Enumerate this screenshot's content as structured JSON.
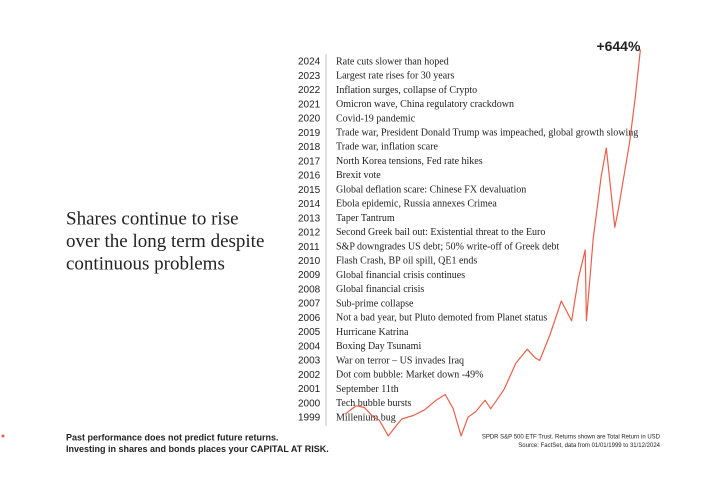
{
  "headline": [
    "Shares continue to rise",
    "over the long term despite",
    "continuous problems"
  ],
  "events": [
    {
      "year": "2024",
      "text": "Rate cuts slower than hoped"
    },
    {
      "year": "2023",
      "text": "Largest rate rises for 30 years"
    },
    {
      "year": "2022",
      "text": "Inflation surges, collapse of Crypto"
    },
    {
      "year": "2021",
      "text": "Omicron wave, China regulatory crackdown"
    },
    {
      "year": "2020",
      "text": "Covid-19 pandemic"
    },
    {
      "year": "2019",
      "text": "Trade war, President Donald Trump was impeached, global growth slowing"
    },
    {
      "year": "2018",
      "text": "Trade war, inflation scare"
    },
    {
      "year": "2017",
      "text": "North Korea tensions, Fed rate hikes"
    },
    {
      "year": "2016",
      "text": "Brexit vote"
    },
    {
      "year": "2015",
      "text": "Global deflation scare: Chinese FX devaluation"
    },
    {
      "year": "2014",
      "text": "Ebola epidemic, Russia annexes Crimea"
    },
    {
      "year": "2013",
      "text": "Taper Tantrum"
    },
    {
      "year": "2012",
      "text": "Second Greek bail out: Existential threat to the Euro"
    },
    {
      "year": "2011",
      "text": "S&P downgrades US debt; 50% write-off of Greek debt"
    },
    {
      "year": "2010",
      "text": "Flash Crash, BP oil spill, QE1 ends"
    },
    {
      "year": "2009",
      "text": "Global financial crisis continues"
    },
    {
      "year": "2008",
      "text": "Global financial crisis"
    },
    {
      "year": "2007",
      "text": "Sub-prime collapse"
    },
    {
      "year": "2006",
      "text": "Not a bad year, but Pluto demoted from Planet status"
    },
    {
      "year": "2005",
      "text": "Hurricane Katrina"
    },
    {
      "year": "2004",
      "text": "Boxing Day Tsunami"
    },
    {
      "year": "2003",
      "text": "War on terror – US invades Iraq"
    },
    {
      "year": "2002",
      "text": "Dot com bubble: Market down -49%"
    },
    {
      "year": "2001",
      "text": "September 11th"
    },
    {
      "year": "2000",
      "text": "Tech bubble bursts"
    },
    {
      "year": "1999",
      "text": "Millenium bug"
    }
  ],
  "chart_data": {
    "type": "line",
    "x": [
      1999.0,
      1999.5,
      2000.0,
      2000.7,
      2001.5,
      2002.0,
      2002.8,
      2003.5,
      2004.0,
      2005.0,
      2006.0,
      2007.0,
      2007.8,
      2008.5,
      2009.2,
      2009.8,
      2010.5,
      2011.3,
      2011.8,
      2012.5,
      2013.0,
      2014.0,
      2015.0,
      2015.7,
      2016.1,
      2017.0,
      2018.0,
      2018.9,
      2019.5,
      2020.1,
      2020.2,
      2020.8,
      2021.5,
      2021.95,
      2022.7,
      2023.0,
      2023.5,
      2024.0,
      2024.5,
      2024.95
    ],
    "series": [
      {
        "color": "#e8604c",
        "values": [
          0,
          8,
          15,
          12,
          -5,
          -10,
          -38,
          -20,
          -8,
          -2,
          8,
          25,
          35,
          10,
          -38,
          -5,
          5,
          25,
          10,
          30,
          45,
          90,
          115,
          100,
          95,
          140,
          200,
          165,
          240,
          290,
          165,
          310,
          420,
          470,
          330,
          360,
          420,
          480,
          560,
          644
        ],
        "value_labels": [
          null,
          null,
          null,
          null,
          null,
          null,
          null,
          null,
          null,
          null,
          null,
          null,
          null,
          null,
          null,
          null,
          null,
          null,
          null,
          null,
          null,
          null,
          null,
          null,
          null,
          null,
          null,
          null,
          null,
          null,
          null,
          null,
          null,
          null,
          null,
          null,
          null,
          null,
          null,
          "+644%"
        ]
      }
    ],
    "xlim": [
      1999,
      2025
    ],
    "ylim": [
      -40,
      650
    ]
  },
  "disclaimer": [
    "Past performance does not predict future returns.",
    "Investing in shares and bonds places your CAPITAL AT RISK."
  ],
  "source": [
    "SPDR S&P 500 ETF Trust. Returns shown are Total Return in USD",
    "Source: FactSet, data from 01/01/1999 to 31/12/2024"
  ]
}
